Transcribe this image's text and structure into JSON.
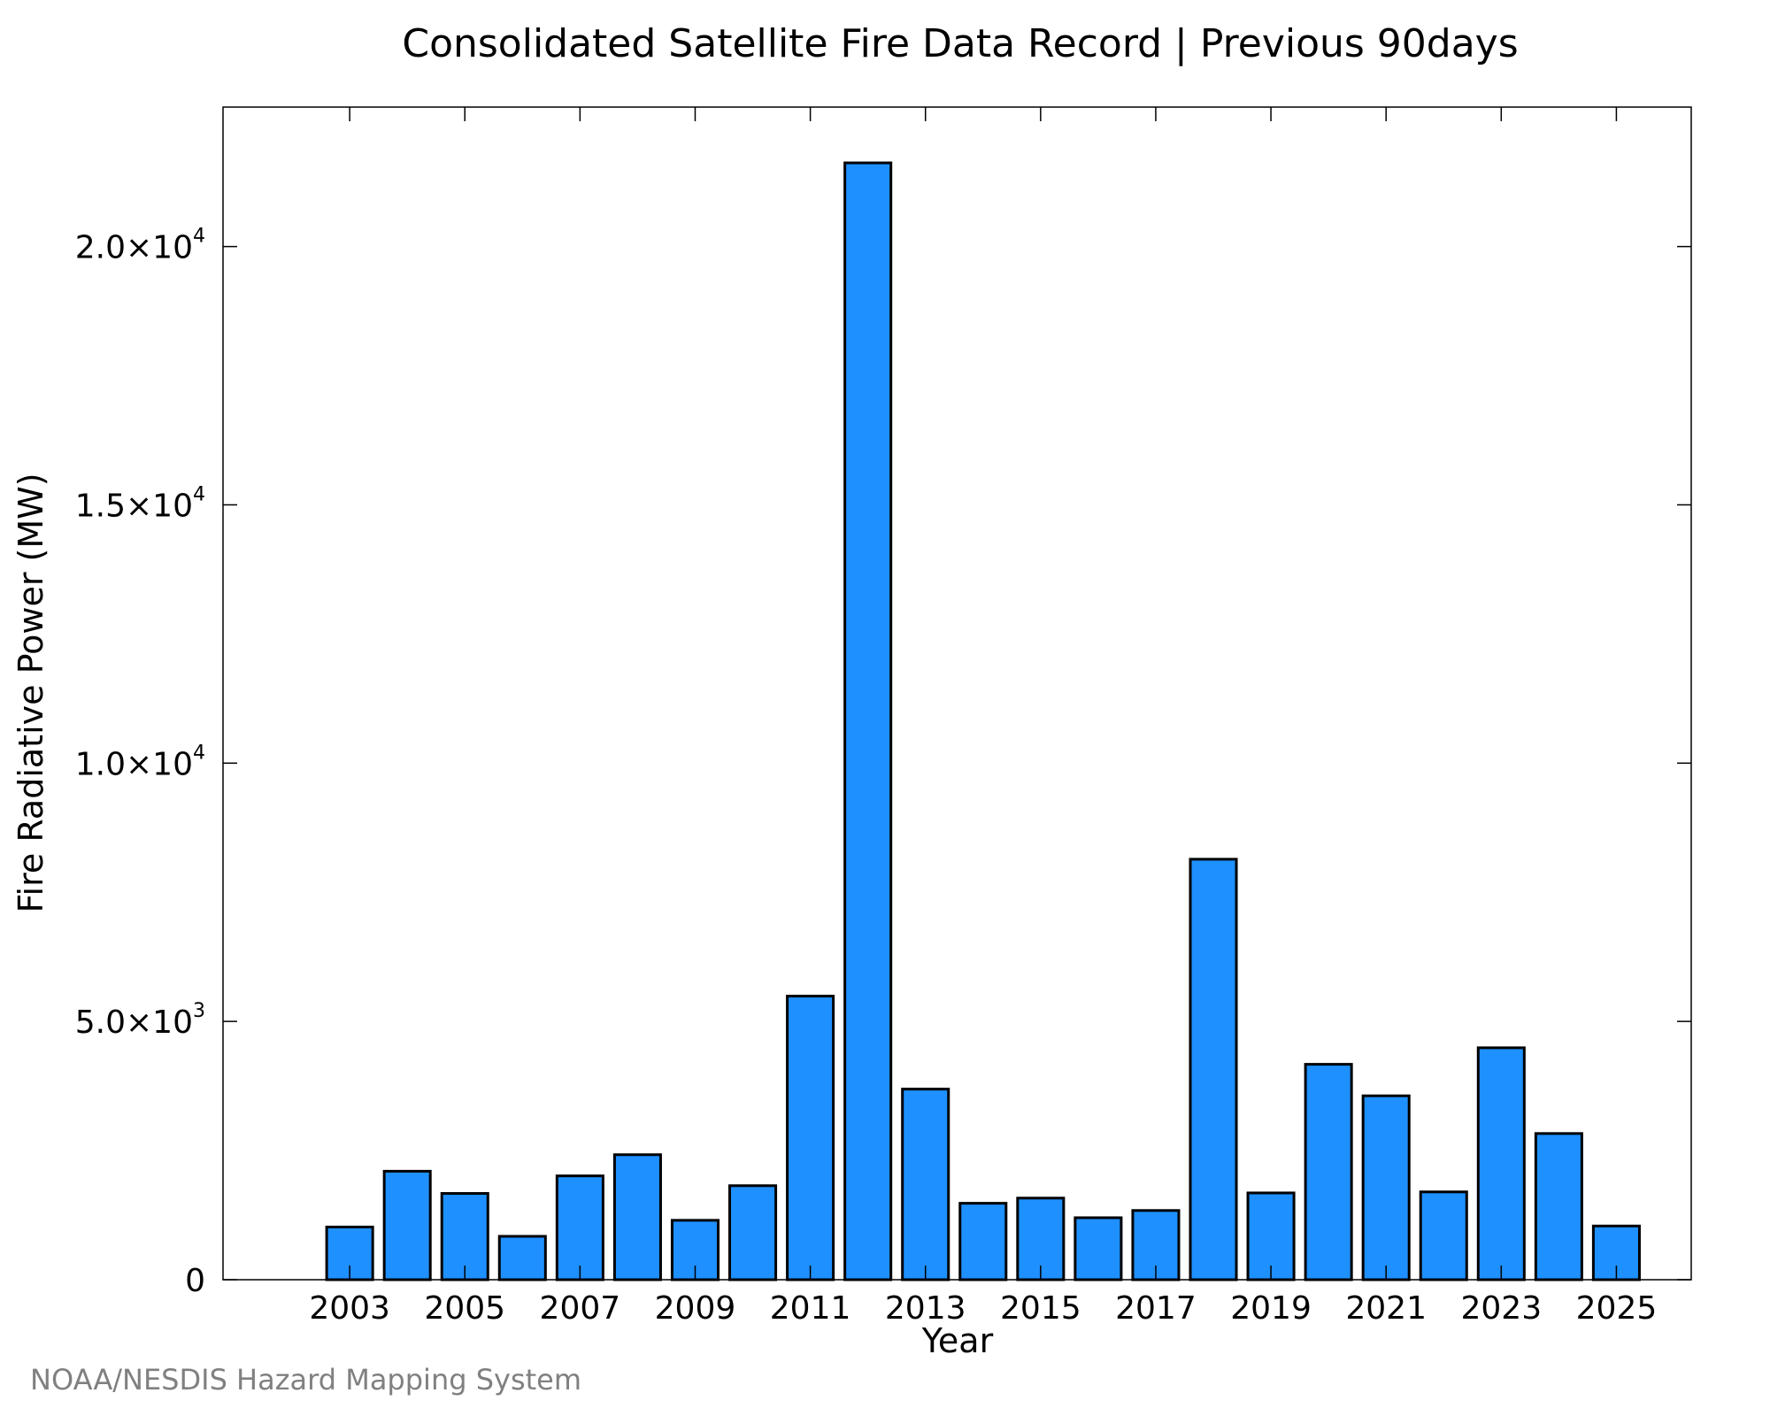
{
  "credit": "NOAA/NESDIS Hazard Mapping System",
  "chart_data": {
    "type": "bar",
    "title": "Consolidated Satellite Fire Data Record | Previous 90days",
    "xlabel": "Year",
    "ylabel": "Fire Radiative Power (MW)",
    "x": [
      2003,
      2004,
      2005,
      2006,
      2007,
      2008,
      2009,
      2010,
      2011,
      2012,
      2013,
      2014,
      2015,
      2016,
      2017,
      2018,
      2019,
      2020,
      2021,
      2022,
      2023,
      2024,
      2025
    ],
    "values": [
      1020,
      2100,
      1670,
      840,
      2010,
      2420,
      1150,
      1820,
      5490,
      21620,
      3690,
      1480,
      1580,
      1200,
      1340,
      8140,
      1680,
      4170,
      3560,
      1700,
      4490,
      2830,
      1040
    ],
    "xlim": [
      2000.8,
      2026.3
    ],
    "ylim": [
      0,
      22700
    ],
    "x_ticks": [
      {
        "value": 2003,
        "label": "2003"
      },
      {
        "value": 2005,
        "label": "2005"
      },
      {
        "value": 2007,
        "label": "2007"
      },
      {
        "value": 2009,
        "label": "2009"
      },
      {
        "value": 2011,
        "label": "2011"
      },
      {
        "value": 2013,
        "label": "2013"
      },
      {
        "value": 2015,
        "label": "2015"
      },
      {
        "value": 2017,
        "label": "2017"
      },
      {
        "value": 2019,
        "label": "2019"
      },
      {
        "value": 2021,
        "label": "2021"
      },
      {
        "value": 2023,
        "label": "2023"
      },
      {
        "value": 2025,
        "label": "2025"
      }
    ],
    "y_ticks": [
      {
        "value": 0,
        "mantissa": "0",
        "exponent": ""
      },
      {
        "value": 5000,
        "mantissa": "5.0×10",
        "exponent": "3"
      },
      {
        "value": 10000,
        "mantissa": "1.0×10",
        "exponent": "4"
      },
      {
        "value": 15000,
        "mantissa": "1.5×10",
        "exponent": "4"
      },
      {
        "value": 20000,
        "mantissa": "2.0×10",
        "exponent": "4"
      }
    ],
    "bar_color": "#1e90ff",
    "bar_edge_color": "#000000",
    "grid": false,
    "legend": "none"
  }
}
